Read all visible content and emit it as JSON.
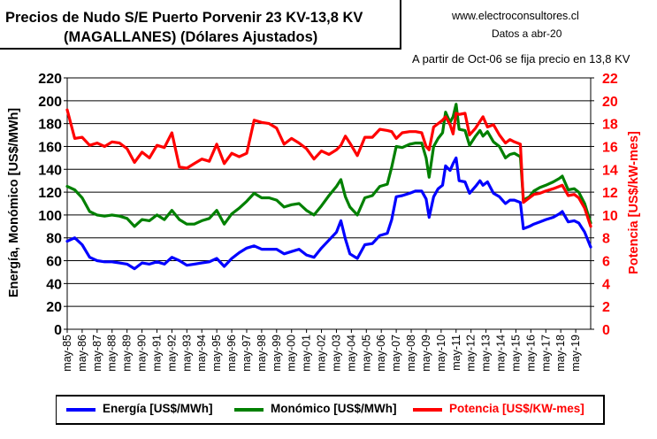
{
  "header": {
    "title_line1": "Precios de Nudo S/E Puerto Porvenir 23 KV-13,8 KV",
    "title_line2": "(MAGALLANES) (Dólares Ajustados)",
    "website": "www.electroconsultores.cl",
    "date_note": "Datos a abr-20",
    "note": "A partir de Oct-06 se fija precio en 13,8 KV"
  },
  "chart_data": {
    "type": "line",
    "title": "Precios de Nudo S/E Puerto Porvenir 23 KV-13,8 KV (MAGALLANES) (Dólares Ajustados)",
    "ylabel_left": "Energía, Monómico [US$/MWh]",
    "ylabel_right": "Potencia [US$/kW-mes]",
    "ylim_left": [
      0,
      220
    ],
    "ylim_right": [
      0,
      22
    ],
    "yticks_left": [
      "0",
      "20",
      "40",
      "60",
      "80",
      "100",
      "120",
      "140",
      "160",
      "180",
      "200",
      "220"
    ],
    "yticks_right": [
      "0",
      "2",
      "4",
      "6",
      "8",
      "10",
      "12",
      "14",
      "16",
      "18",
      "20",
      "22"
    ],
    "xticks": [
      "may-85",
      "may-86",
      "may-87",
      "may-88",
      "may-89",
      "may-90",
      "may-91",
      "may-92",
      "may-93",
      "may-94",
      "may-95",
      "may-96",
      "may-97",
      "may-98",
      "may-99",
      "may-00",
      "may-01",
      "may-02",
      "may-03",
      "may-04",
      "may-05",
      "may-06",
      "may-07",
      "may-08",
      "may-09",
      "may-10",
      "may-11",
      "may-12",
      "may-13",
      "may-14",
      "may-15",
      "may-16",
      "may-17",
      "may-18",
      "may-19"
    ],
    "grid": true,
    "legend_position": "bottom",
    "series": [
      {
        "name": "Energía [US$/MWh]",
        "axis": "left",
        "color": "#0000ff",
        "points": [
          [
            1985.3,
            77
          ],
          [
            1985.8,
            80
          ],
          [
            1986.3,
            74
          ],
          [
            1986.8,
            63
          ],
          [
            1987.3,
            60
          ],
          [
            1987.8,
            59
          ],
          [
            1988.3,
            59
          ],
          [
            1988.8,
            58
          ],
          [
            1989.3,
            57
          ],
          [
            1989.8,
            53
          ],
          [
            1990.3,
            58
          ],
          [
            1990.8,
            57
          ],
          [
            1991.3,
            59
          ],
          [
            1991.8,
            57
          ],
          [
            1992.3,
            63
          ],
          [
            1992.8,
            60
          ],
          [
            1993.3,
            56
          ],
          [
            1993.8,
            57
          ],
          [
            1994.3,
            58
          ],
          [
            1994.8,
            59
          ],
          [
            1995.3,
            62
          ],
          [
            1995.8,
            55
          ],
          [
            1996.3,
            62
          ],
          [
            1996.8,
            67
          ],
          [
            1997.3,
            71
          ],
          [
            1997.8,
            73
          ],
          [
            1998.3,
            70
          ],
          [
            1998.8,
            70
          ],
          [
            1999.3,
            70
          ],
          [
            1999.8,
            66
          ],
          [
            2000.3,
            68
          ],
          [
            2000.8,
            70
          ],
          [
            2001.3,
            65
          ],
          [
            2001.8,
            63
          ],
          [
            2002.3,
            71
          ],
          [
            2002.8,
            78
          ],
          [
            2003.3,
            85
          ],
          [
            2003.6,
            95
          ],
          [
            2003.9,
            79
          ],
          [
            2004.2,
            66
          ],
          [
            2004.7,
            62
          ],
          [
            2005.2,
            74
          ],
          [
            2005.7,
            75
          ],
          [
            2006.2,
            82
          ],
          [
            2006.7,
            84
          ],
          [
            2007.0,
            96
          ],
          [
            2007.3,
            116
          ],
          [
            2007.7,
            117
          ],
          [
            2008.2,
            119
          ],
          [
            2008.6,
            121
          ],
          [
            2009.0,
            121
          ],
          [
            2009.3,
            114
          ],
          [
            2009.5,
            98
          ],
          [
            2009.8,
            116
          ],
          [
            2010.1,
            123
          ],
          [
            2010.4,
            126
          ],
          [
            2010.6,
            143
          ],
          [
            2010.9,
            139
          ],
          [
            2011.1,
            145
          ],
          [
            2011.3,
            150
          ],
          [
            2011.5,
            130
          ],
          [
            2011.9,
            129
          ],
          [
            2012.2,
            119
          ],
          [
            2012.6,
            125
          ],
          [
            2012.9,
            130
          ],
          [
            2013.1,
            126
          ],
          [
            2013.4,
            129
          ],
          [
            2013.8,
            119
          ],
          [
            2014.2,
            116
          ],
          [
            2014.6,
            110
          ],
          [
            2014.9,
            113
          ],
          [
            2015.2,
            113
          ],
          [
            2015.6,
            111
          ],
          [
            2015.8,
            88
          ],
          [
            2016.2,
            90
          ],
          [
            2016.5,
            92
          ],
          [
            2016.9,
            94
          ],
          [
            2017.3,
            96
          ],
          [
            2017.8,
            98
          ],
          [
            2018.2,
            101
          ],
          [
            2018.4,
            103
          ],
          [
            2018.8,
            94
          ],
          [
            2019.2,
            95
          ],
          [
            2019.5,
            93
          ],
          [
            2019.9,
            85
          ],
          [
            2020.3,
            72
          ]
        ]
      },
      {
        "name": "Monómico [US$/MWh]",
        "axis": "left",
        "color": "#008000",
        "points": [
          [
            1985.3,
            125
          ],
          [
            1985.8,
            122
          ],
          [
            1986.3,
            115
          ],
          [
            1986.8,
            103
          ],
          [
            1987.3,
            100
          ],
          [
            1987.8,
            99
          ],
          [
            1988.3,
            100
          ],
          [
            1988.8,
            99
          ],
          [
            1989.3,
            97
          ],
          [
            1989.8,
            90
          ],
          [
            1990.3,
            96
          ],
          [
            1990.8,
            95
          ],
          [
            1991.3,
            100
          ],
          [
            1991.8,
            96
          ],
          [
            1992.3,
            104
          ],
          [
            1992.8,
            96
          ],
          [
            1993.3,
            92
          ],
          [
            1993.8,
            92
          ],
          [
            1994.3,
            95
          ],
          [
            1994.8,
            97
          ],
          [
            1995.3,
            104
          ],
          [
            1995.8,
            92
          ],
          [
            1996.3,
            101
          ],
          [
            1996.8,
            106
          ],
          [
            1997.3,
            112
          ],
          [
            1997.8,
            119
          ],
          [
            1998.3,
            115
          ],
          [
            1998.8,
            115
          ],
          [
            1999.3,
            113
          ],
          [
            1999.8,
            107
          ],
          [
            2000.3,
            109
          ],
          [
            2000.8,
            110
          ],
          [
            2001.3,
            104
          ],
          [
            2001.8,
            100
          ],
          [
            2002.3,
            108
          ],
          [
            2002.8,
            117
          ],
          [
            2003.3,
            125
          ],
          [
            2003.6,
            131
          ],
          [
            2003.9,
            116
          ],
          [
            2004.2,
            107
          ],
          [
            2004.7,
            100
          ],
          [
            2005.2,
            115
          ],
          [
            2005.7,
            117
          ],
          [
            2006.2,
            125
          ],
          [
            2006.7,
            127
          ],
          [
            2007.0,
            142
          ],
          [
            2007.3,
            160
          ],
          [
            2007.7,
            159
          ],
          [
            2008.2,
            162
          ],
          [
            2008.6,
            163
          ],
          [
            2009.0,
            163
          ],
          [
            2009.3,
            150
          ],
          [
            2009.5,
            133
          ],
          [
            2009.8,
            160
          ],
          [
            2010.1,
            167
          ],
          [
            2010.4,
            172
          ],
          [
            2010.6,
            190
          ],
          [
            2010.9,
            181
          ],
          [
            2011.1,
            186
          ],
          [
            2011.3,
            197
          ],
          [
            2011.5,
            175
          ],
          [
            2011.9,
            174
          ],
          [
            2012.2,
            161
          ],
          [
            2012.6,
            169
          ],
          [
            2012.9,
            174
          ],
          [
            2013.1,
            169
          ],
          [
            2013.4,
            173
          ],
          [
            2013.8,
            164
          ],
          [
            2014.2,
            160
          ],
          [
            2014.6,
            150
          ],
          [
            2014.9,
            153
          ],
          [
            2015.2,
            154
          ],
          [
            2015.6,
            151
          ],
          [
            2015.8,
            113
          ],
          [
            2016.2,
            116
          ],
          [
            2016.5,
            121
          ],
          [
            2016.9,
            124
          ],
          [
            2017.3,
            126
          ],
          [
            2017.8,
            129
          ],
          [
            2018.2,
            132
          ],
          [
            2018.4,
            134
          ],
          [
            2018.8,
            122
          ],
          [
            2019.2,
            123
          ],
          [
            2019.5,
            120
          ],
          [
            2019.9,
            110
          ],
          [
            2020.3,
            93
          ]
        ]
      },
      {
        "name": "Potencia [US$/KW-mes]",
        "axis": "right",
        "color": "#ff0000",
        "points": [
          [
            1985.3,
            19.2
          ],
          [
            1985.8,
            16.7
          ],
          [
            1986.3,
            16.8
          ],
          [
            1986.8,
            16.1
          ],
          [
            1987.3,
            16.3
          ],
          [
            1987.8,
            16.0
          ],
          [
            1988.3,
            16.4
          ],
          [
            1988.8,
            16.3
          ],
          [
            1989.3,
            15.8
          ],
          [
            1989.8,
            14.6
          ],
          [
            1990.3,
            15.5
          ],
          [
            1990.8,
            15.0
          ],
          [
            1991.3,
            16.1
          ],
          [
            1991.8,
            15.9
          ],
          [
            1992.3,
            17.2
          ],
          [
            1992.8,
            14.2
          ],
          [
            1993.3,
            14.1
          ],
          [
            1993.8,
            14.5
          ],
          [
            1994.3,
            14.9
          ],
          [
            1994.8,
            14.7
          ],
          [
            1995.3,
            16.2
          ],
          [
            1995.8,
            14.5
          ],
          [
            1996.3,
            15.4
          ],
          [
            1996.8,
            15.1
          ],
          [
            1997.3,
            15.4
          ],
          [
            1997.8,
            18.3
          ],
          [
            1998.3,
            18.1
          ],
          [
            1998.8,
            18.0
          ],
          [
            1999.3,
            17.6
          ],
          [
            1999.8,
            16.2
          ],
          [
            2000.3,
            16.7
          ],
          [
            2000.8,
            16.3
          ],
          [
            2001.3,
            15.8
          ],
          [
            2001.8,
            14.9
          ],
          [
            2002.3,
            15.6
          ],
          [
            2002.8,
            15.3
          ],
          [
            2003.3,
            15.7
          ],
          [
            2003.6,
            16.1
          ],
          [
            2003.9,
            16.9
          ],
          [
            2004.2,
            16.3
          ],
          [
            2004.7,
            15.2
          ],
          [
            2005.2,
            16.8
          ],
          [
            2005.7,
            16.8
          ],
          [
            2006.2,
            17.5
          ],
          [
            2006.7,
            17.4
          ],
          [
            2007.0,
            17.3
          ],
          [
            2007.3,
            16.7
          ],
          [
            2007.7,
            17.2
          ],
          [
            2008.2,
            17.3
          ],
          [
            2008.6,
            17.3
          ],
          [
            2009.0,
            17.2
          ],
          [
            2009.3,
            16.0
          ],
          [
            2009.5,
            15.7
          ],
          [
            2009.8,
            17.7
          ],
          [
            2010.1,
            18.0
          ],
          [
            2010.4,
            18.3
          ],
          [
            2010.6,
            18.6
          ],
          [
            2010.9,
            17.9
          ],
          [
            2011.1,
            17.1
          ],
          [
            2011.3,
            18.9
          ],
          [
            2011.5,
            18.8
          ],
          [
            2011.9,
            18.9
          ],
          [
            2012.2,
            17.0
          ],
          [
            2012.6,
            17.6
          ],
          [
            2012.9,
            18.2
          ],
          [
            2013.1,
            18.6
          ],
          [
            2013.4,
            17.7
          ],
          [
            2013.8,
            17.9
          ],
          [
            2014.2,
            17.0
          ],
          [
            2014.6,
            16.3
          ],
          [
            2014.9,
            16.6
          ],
          [
            2015.2,
            16.4
          ],
          [
            2015.6,
            16.2
          ],
          [
            2015.8,
            11.1
          ],
          [
            2016.2,
            11.5
          ],
          [
            2016.5,
            11.8
          ],
          [
            2016.9,
            11.9
          ],
          [
            2017.3,
            12.1
          ],
          [
            2017.8,
            12.3
          ],
          [
            2018.2,
            12.5
          ],
          [
            2018.4,
            12.6
          ],
          [
            2018.8,
            11.7
          ],
          [
            2019.2,
            11.8
          ],
          [
            2019.5,
            11.5
          ],
          [
            2019.9,
            10.6
          ],
          [
            2020.3,
            9.0
          ]
        ]
      }
    ]
  }
}
